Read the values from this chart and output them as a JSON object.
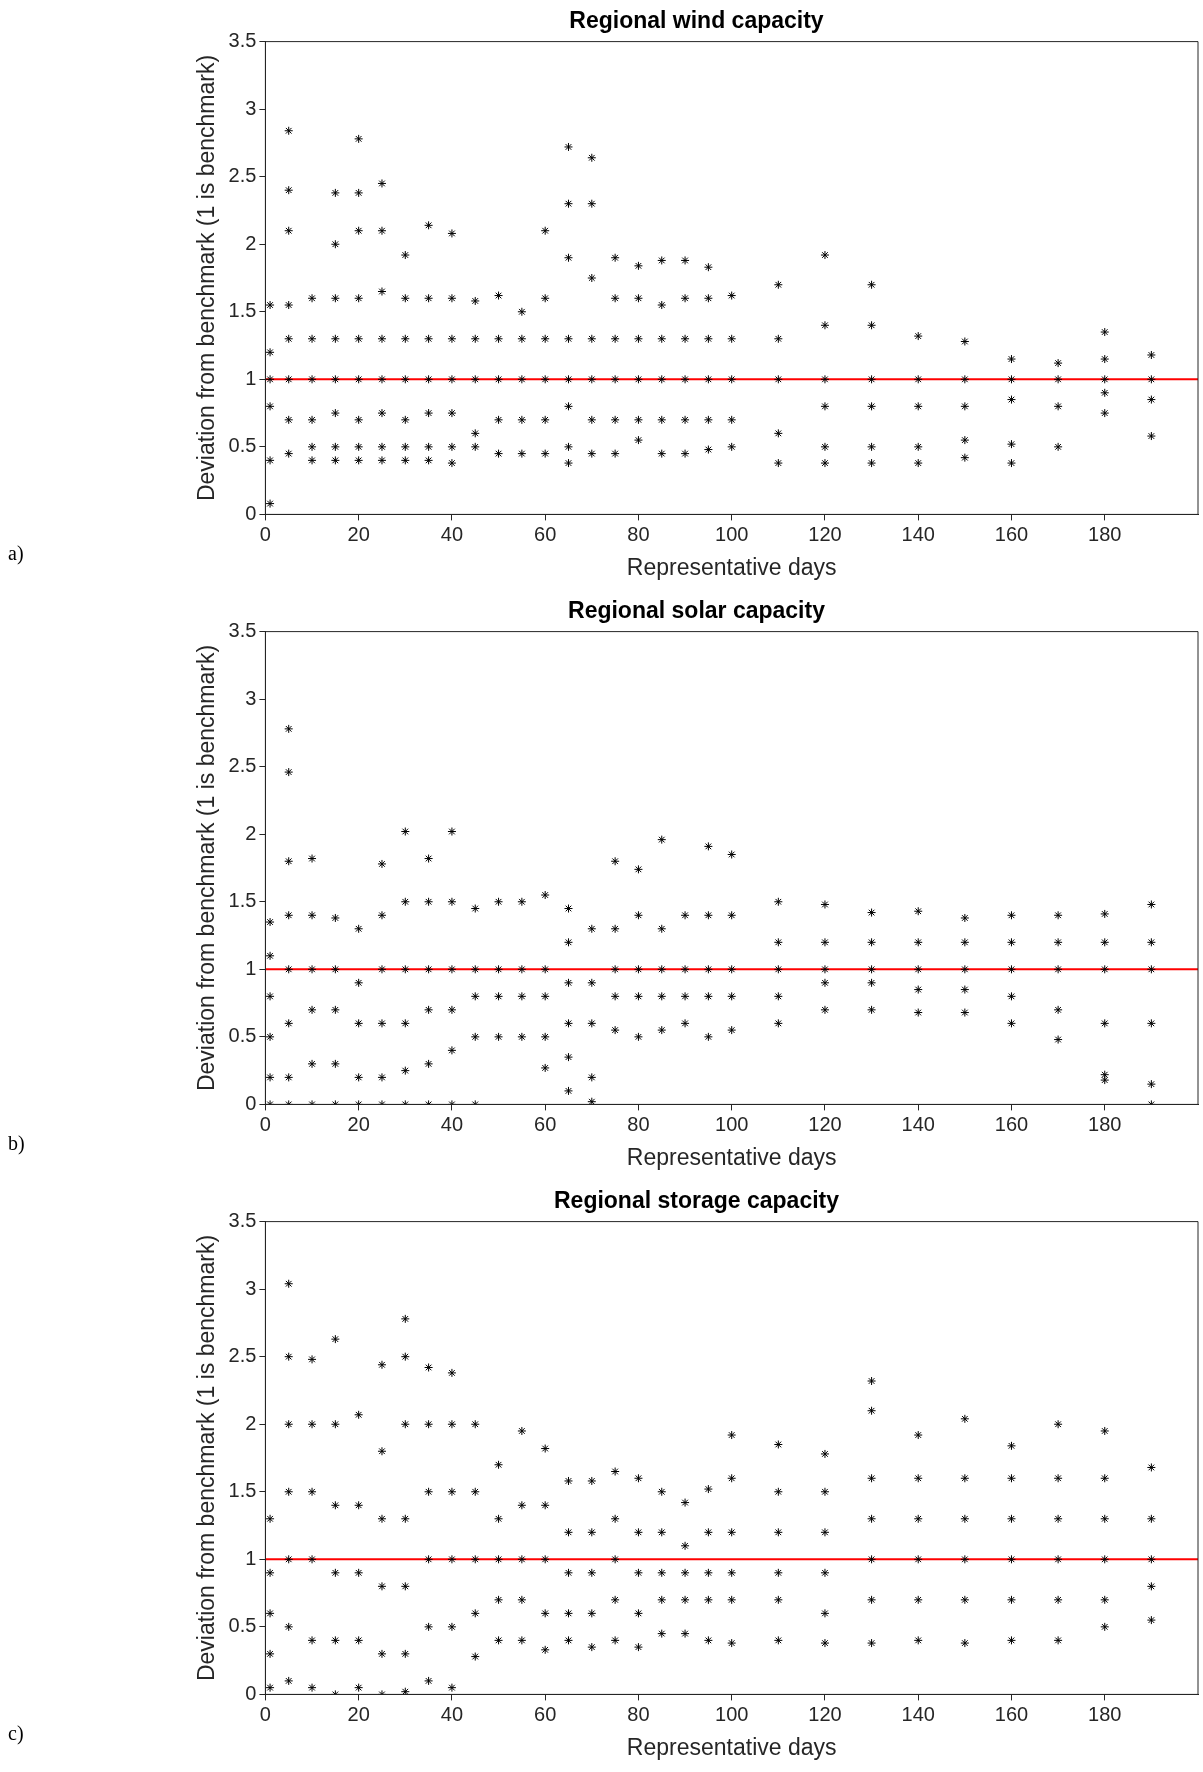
{
  "chart_data": [
    {
      "type": "scatter",
      "title": "Regional wind capacity",
      "xlabel": "Representative days",
      "ylabel": "Deviation from benchmark (1 is benchmark)",
      "marker": "cross",
      "grid": false,
      "annotations": [
        "a)"
      ],
      "xlim": [
        0,
        200
      ],
      "xticks": [
        0,
        20,
        40,
        60,
        80,
        100,
        120,
        140,
        160,
        180
      ],
      "ylim": [
        0,
        3.5
      ],
      "yticks": [
        0,
        0.5,
        1,
        1.5,
        2,
        2.5,
        3,
        3.5
      ],
      "ref_lines": [
        {
          "axis": "y",
          "value": 1,
          "color": "#ff0000"
        }
      ],
      "series": [
        {
          "type": "scatter",
          "color": "#000000",
          "x": [
            1,
            1,
            1,
            1,
            1,
            1,
            5,
            5,
            5,
            5,
            5,
            5,
            5,
            5,
            10,
            10,
            10,
            10,
            10,
            10,
            15,
            15,
            15,
            15,
            15,
            15,
            15,
            15,
            20,
            20,
            20,
            20,
            20,
            20,
            20,
            20,
            20,
            25,
            25,
            25,
            25,
            25,
            25,
            25,
            25,
            30,
            30,
            30,
            30,
            30,
            30,
            30,
            35,
            35,
            35,
            35,
            35,
            35,
            35,
            40,
            40,
            40,
            40,
            40,
            40,
            40,
            45,
            45,
            45,
            45,
            45,
            50,
            50,
            50,
            50,
            50,
            55,
            55,
            55,
            55,
            55,
            60,
            60,
            60,
            60,
            60,
            60,
            65,
            65,
            65,
            65,
            65,
            65,
            65,
            65,
            70,
            70,
            70,
            70,
            70,
            70,
            70,
            75,
            75,
            75,
            75,
            75,
            75,
            80,
            80,
            80,
            80,
            80,
            80,
            85,
            85,
            85,
            85,
            85,
            85,
            90,
            90,
            90,
            90,
            90,
            90,
            95,
            95,
            95,
            95,
            95,
            95,
            100,
            100,
            100,
            100,
            100,
            110,
            110,
            110,
            110,
            110,
            120,
            120,
            120,
            120,
            120,
            120,
            130,
            130,
            130,
            130,
            130,
            130,
            140,
            140,
            140,
            140,
            140,
            150,
            150,
            150,
            150,
            150,
            160,
            160,
            160,
            160,
            160,
            170,
            170,
            170,
            170,
            180,
            180,
            180,
            180,
            180,
            190,
            190,
            190,
            190
          ],
          "values": [
            0.08,
            0.4,
            0.8,
            1.0,
            1.2,
            1.55,
            0.45,
            0.7,
            1.0,
            1.3,
            1.55,
            2.1,
            2.4,
            2.84,
            0.4,
            0.5,
            0.7,
            1.0,
            1.3,
            1.6,
            0.4,
            0.5,
            0.75,
            1.0,
            1.3,
            1.6,
            2.0,
            2.38,
            0.4,
            0.5,
            0.7,
            1.0,
            1.3,
            1.6,
            2.1,
            2.38,
            2.78,
            0.4,
            0.5,
            0.75,
            1.0,
            1.3,
            1.65,
            2.1,
            2.45,
            0.4,
            0.5,
            0.7,
            1.0,
            1.3,
            1.6,
            1.92,
            0.4,
            0.5,
            0.75,
            1.0,
            1.3,
            1.6,
            2.14,
            0.38,
            0.5,
            0.75,
            1.0,
            1.3,
            1.6,
            2.08,
            0.5,
            0.6,
            1.0,
            1.3,
            1.58,
            0.45,
            0.7,
            1.0,
            1.3,
            1.62,
            0.45,
            0.7,
            1.0,
            1.3,
            1.5,
            0.45,
            0.7,
            1.0,
            1.3,
            1.6,
            2.1,
            0.38,
            0.5,
            0.8,
            1.0,
            1.3,
            1.9,
            2.3,
            2.72,
            0.45,
            0.7,
            1.0,
            1.3,
            1.75,
            2.3,
            2.64,
            0.45,
            0.7,
            1.0,
            1.3,
            1.6,
            1.9,
            0.55,
            0.7,
            1.0,
            1.3,
            1.6,
            1.84,
            0.45,
            0.7,
            1.0,
            1.3,
            1.55,
            1.88,
            0.45,
            0.7,
            1.0,
            1.3,
            1.6,
            1.88,
            0.48,
            0.7,
            1.0,
            1.3,
            1.6,
            1.83,
            0.5,
            0.7,
            1.0,
            1.3,
            1.62,
            0.38,
            0.6,
            1.0,
            1.3,
            1.7,
            0.38,
            0.5,
            0.8,
            1.0,
            1.4,
            1.92,
            0.38,
            0.5,
            0.8,
            1.0,
            1.4,
            1.7,
            0.38,
            0.5,
            0.8,
            1.0,
            1.32,
            0.42,
            0.55,
            0.8,
            1.0,
            1.28,
            0.38,
            0.52,
            0.85,
            1.0,
            1.15,
            0.5,
            0.8,
            1.0,
            1.12,
            0.75,
            0.9,
            1.0,
            1.15,
            1.35,
            0.58,
            0.85,
            1.0,
            1.18
          ]
        }
      ]
    },
    {
      "type": "scatter",
      "title": "Regional solar capacity",
      "xlabel": "Representative days",
      "ylabel": "Deviation from benchmark (1 is benchmark)",
      "marker": "cross",
      "grid": false,
      "annotations": [
        "b)"
      ],
      "xlim": [
        0,
        200
      ],
      "xticks": [
        0,
        20,
        40,
        60,
        80,
        100,
        120,
        140,
        160,
        180
      ],
      "ylim": [
        0,
        3.5
      ],
      "yticks": [
        0,
        0.5,
        1,
        1.5,
        2,
        2.5,
        3,
        3.5
      ],
      "ref_lines": [
        {
          "axis": "y",
          "value": 1,
          "color": "#ff0000"
        }
      ],
      "series": [
        {
          "type": "scatter",
          "color": "#000000",
          "x": [
            1,
            1,
            1,
            1,
            1,
            1,
            5,
            5,
            5,
            5,
            5,
            5,
            5,
            5,
            10,
            10,
            10,
            10,
            10,
            10,
            15,
            15,
            15,
            15,
            15,
            20,
            20,
            20,
            20,
            20,
            25,
            25,
            25,
            25,
            25,
            25,
            30,
            30,
            30,
            30,
            30,
            30,
            35,
            35,
            35,
            35,
            35,
            35,
            40,
            40,
            40,
            40,
            40,
            40,
            45,
            45,
            45,
            45,
            45,
            50,
            50,
            50,
            50,
            55,
            55,
            55,
            55,
            60,
            60,
            60,
            60,
            60,
            65,
            65,
            65,
            65,
            65,
            65,
            70,
            70,
            70,
            70,
            70,
            75,
            75,
            75,
            75,
            75,
            80,
            80,
            80,
            80,
            80,
            85,
            85,
            85,
            85,
            85,
            90,
            90,
            90,
            90,
            95,
            95,
            95,
            95,
            95,
            100,
            100,
            100,
            100,
            100,
            110,
            110,
            110,
            110,
            110,
            120,
            120,
            120,
            120,
            120,
            130,
            130,
            130,
            130,
            130,
            140,
            140,
            140,
            140,
            140,
            150,
            150,
            150,
            150,
            150,
            160,
            160,
            160,
            160,
            160,
            170,
            170,
            170,
            170,
            170,
            180,
            180,
            180,
            180,
            180,
            180,
            190,
            190,
            190,
            190,
            190,
            190
          ],
          "values": [
            0.0,
            0.2,
            0.5,
            0.8,
            1.1,
            1.35,
            0.0,
            0.2,
            0.6,
            1.0,
            1.4,
            1.8,
            2.46,
            2.78,
            0.0,
            0.3,
            0.7,
            1.0,
            1.4,
            1.82,
            0.0,
            0.3,
            0.7,
            1.0,
            1.38,
            0.0,
            0.2,
            0.6,
            0.9,
            1.3,
            0.0,
            0.2,
            0.6,
            1.0,
            1.4,
            1.78,
            0.0,
            0.25,
            0.6,
            1.0,
            1.5,
            2.02,
            0.0,
            0.3,
            0.7,
            1.0,
            1.5,
            1.82,
            0.0,
            0.4,
            0.7,
            1.0,
            1.5,
            2.02,
            0.0,
            0.5,
            0.8,
            1.0,
            1.45,
            0.5,
            0.8,
            1.0,
            1.5,
            0.5,
            0.8,
            1.0,
            1.5,
            0.27,
            0.5,
            0.8,
            1.0,
            1.55,
            0.1,
            0.35,
            0.6,
            0.9,
            1.2,
            1.45,
            0.02,
            0.2,
            0.6,
            0.9,
            1.3,
            0.55,
            0.8,
            1.0,
            1.3,
            1.8,
            0.5,
            0.8,
            1.0,
            1.4,
            1.74,
            0.55,
            0.8,
            1.0,
            1.3,
            1.96,
            0.6,
            0.8,
            1.0,
            1.4,
            0.5,
            0.8,
            1.0,
            1.4,
            1.91,
            0.55,
            0.8,
            1.0,
            1.4,
            1.85,
            0.6,
            0.8,
            1.0,
            1.2,
            1.5,
            0.7,
            0.9,
            1.0,
            1.2,
            1.48,
            0.7,
            0.9,
            1.0,
            1.2,
            1.42,
            0.68,
            0.85,
            1.0,
            1.2,
            1.43,
            0.68,
            0.85,
            1.0,
            1.2,
            1.38,
            0.6,
            0.8,
            1.0,
            1.2,
            1.4,
            0.48,
            0.7,
            1.0,
            1.2,
            1.4,
            0.18,
            0.22,
            0.6,
            1.0,
            1.2,
            1.41,
            0.0,
            0.15,
            0.6,
            1.0,
            1.2,
            1.48
          ]
        }
      ]
    },
    {
      "type": "scatter",
      "title": "Regional storage capacity",
      "xlabel": "Representative days",
      "ylabel": "Deviation from benchmark (1 is benchmark)",
      "marker": "cross",
      "grid": false,
      "annotations": [
        "c)"
      ],
      "xlim": [
        0,
        200
      ],
      "xticks": [
        0,
        20,
        40,
        60,
        80,
        100,
        120,
        140,
        160,
        180
      ],
      "ylim": [
        0,
        3.5
      ],
      "yticks": [
        0,
        0.5,
        1,
        1.5,
        2,
        2.5,
        3,
        3.5
      ],
      "ref_lines": [
        {
          "axis": "y",
          "value": 1,
          "color": "#ff0000"
        }
      ],
      "series": [
        {
          "type": "scatter",
          "color": "#000000",
          "x": [
            1,
            1,
            1,
            1,
            1,
            5,
            5,
            5,
            5,
            5,
            5,
            5,
            10,
            10,
            10,
            10,
            10,
            10,
            15,
            15,
            15,
            15,
            15,
            15,
            20,
            20,
            20,
            20,
            20,
            25,
            25,
            25,
            25,
            25,
            25,
            30,
            30,
            30,
            30,
            30,
            30,
            30,
            35,
            35,
            35,
            35,
            35,
            35,
            40,
            40,
            40,
            40,
            40,
            40,
            45,
            45,
            45,
            45,
            45,
            50,
            50,
            50,
            50,
            50,
            55,
            55,
            55,
            55,
            55,
            60,
            60,
            60,
            60,
            60,
            65,
            65,
            65,
            65,
            65,
            70,
            70,
            70,
            70,
            70,
            75,
            75,
            75,
            75,
            75,
            80,
            80,
            80,
            80,
            80,
            85,
            85,
            85,
            85,
            85,
            90,
            90,
            90,
            90,
            90,
            95,
            95,
            95,
            95,
            95,
            100,
            100,
            100,
            100,
            100,
            100,
            110,
            110,
            110,
            110,
            110,
            110,
            120,
            120,
            120,
            120,
            120,
            120,
            130,
            130,
            130,
            130,
            130,
            130,
            130,
            140,
            140,
            140,
            140,
            140,
            140,
            150,
            150,
            150,
            150,
            150,
            150,
            160,
            160,
            160,
            160,
            160,
            160,
            170,
            170,
            170,
            170,
            170,
            170,
            180,
            180,
            180,
            180,
            180,
            180,
            190,
            190,
            190,
            190,
            190
          ],
          "values": [
            0.05,
            0.3,
            0.6,
            0.9,
            1.3,
            0.1,
            0.5,
            1.0,
            1.5,
            2.0,
            2.5,
            3.04,
            0.05,
            0.4,
            1.0,
            1.5,
            2.0,
            2.48,
            0.0,
            0.4,
            0.9,
            1.4,
            2.0,
            2.63,
            0.05,
            0.4,
            0.9,
            1.4,
            2.07,
            0.0,
            0.3,
            0.8,
            1.3,
            1.8,
            2.44,
            0.02,
            0.3,
            0.8,
            1.3,
            2.0,
            2.5,
            2.78,
            0.1,
            0.5,
            1.0,
            1.5,
            2.0,
            2.42,
            0.05,
            0.5,
            1.0,
            1.5,
            2.0,
            2.38,
            0.28,
            0.6,
            1.0,
            1.5,
            2.0,
            0.4,
            0.7,
            1.0,
            1.3,
            1.7,
            0.4,
            0.7,
            1.0,
            1.4,
            1.95,
            0.33,
            0.6,
            1.0,
            1.4,
            1.82,
            0.4,
            0.6,
            0.9,
            1.2,
            1.58,
            0.35,
            0.6,
            0.9,
            1.2,
            1.58,
            0.4,
            0.7,
            1.0,
            1.3,
            1.65,
            0.35,
            0.6,
            0.9,
            1.2,
            1.6,
            0.45,
            0.7,
            0.9,
            1.2,
            1.5,
            0.45,
            0.7,
            0.9,
            1.1,
            1.42,
            0.4,
            0.7,
            0.9,
            1.2,
            1.52,
            0.38,
            0.7,
            0.9,
            1.2,
            1.6,
            1.92,
            0.4,
            0.7,
            0.9,
            1.2,
            1.5,
            1.85,
            0.38,
            0.6,
            0.9,
            1.2,
            1.5,
            1.78,
            0.38,
            0.7,
            1.0,
            1.3,
            1.6,
            2.1,
            2.32,
            0.4,
            0.7,
            1.0,
            1.3,
            1.6,
            1.92,
            0.38,
            0.7,
            1.0,
            1.3,
            1.6,
            2.04,
            0.4,
            0.7,
            1.0,
            1.3,
            1.6,
            1.84,
            0.4,
            0.7,
            1.0,
            1.3,
            1.6,
            2.0,
            0.5,
            0.7,
            1.0,
            1.3,
            1.6,
            1.95,
            0.55,
            0.8,
            1.0,
            1.3,
            1.68
          ]
        }
      ]
    }
  ]
}
